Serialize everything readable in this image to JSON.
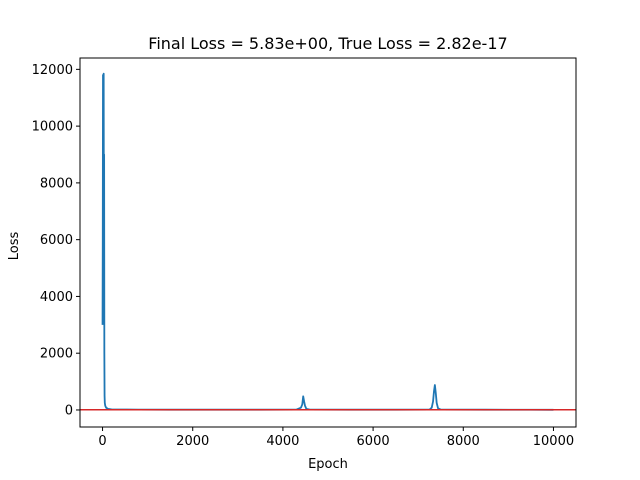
{
  "chart_data": {
    "type": "line",
    "title": "Final Loss = 5.83e+00, True Loss = 2.82e-17",
    "xlabel": "Epoch",
    "ylabel": "Loss",
    "xlim": [
      -500,
      10500
    ],
    "ylim": [
      -600,
      12400
    ],
    "xticks": [
      0,
      2000,
      4000,
      6000,
      8000,
      10000
    ],
    "yticks": [
      0,
      2000,
      4000,
      6000,
      8000,
      10000,
      12000
    ],
    "grid": false,
    "series": [
      {
        "color": "#1f77b4",
        "points": [
          [
            0,
            3000
          ],
          [
            5,
            6000
          ],
          [
            10,
            11800
          ],
          [
            15,
            4200
          ],
          [
            20,
            8400
          ],
          [
            25,
            11850
          ],
          [
            30,
            5000
          ],
          [
            35,
            9000
          ],
          [
            40,
            2000
          ],
          [
            45,
            500
          ],
          [
            50,
            250
          ],
          [
            60,
            150
          ],
          [
            80,
            80
          ],
          [
            120,
            40
          ],
          [
            200,
            20
          ],
          [
            400,
            15
          ],
          [
            800,
            12
          ],
          [
            1500,
            10
          ],
          [
            2500,
            10
          ],
          [
            3500,
            10
          ],
          [
            4300,
            12
          ],
          [
            4400,
            80
          ],
          [
            4430,
            200
          ],
          [
            4450,
            480
          ],
          [
            4470,
            300
          ],
          [
            4490,
            150
          ],
          [
            4520,
            40
          ],
          [
            4600,
            12
          ],
          [
            5500,
            10
          ],
          [
            6500,
            10
          ],
          [
            7250,
            12
          ],
          [
            7300,
            80
          ],
          [
            7330,
            300
          ],
          [
            7350,
            650
          ],
          [
            7370,
            880
          ],
          [
            7390,
            600
          ],
          [
            7410,
            250
          ],
          [
            7440,
            60
          ],
          [
            7500,
            15
          ],
          [
            8500,
            10
          ],
          [
            9500,
            8
          ],
          [
            10000,
            6
          ]
        ]
      },
      {
        "color": "#d62728",
        "points": [
          [
            -500,
            10
          ],
          [
            10500,
            10
          ]
        ]
      }
    ]
  }
}
